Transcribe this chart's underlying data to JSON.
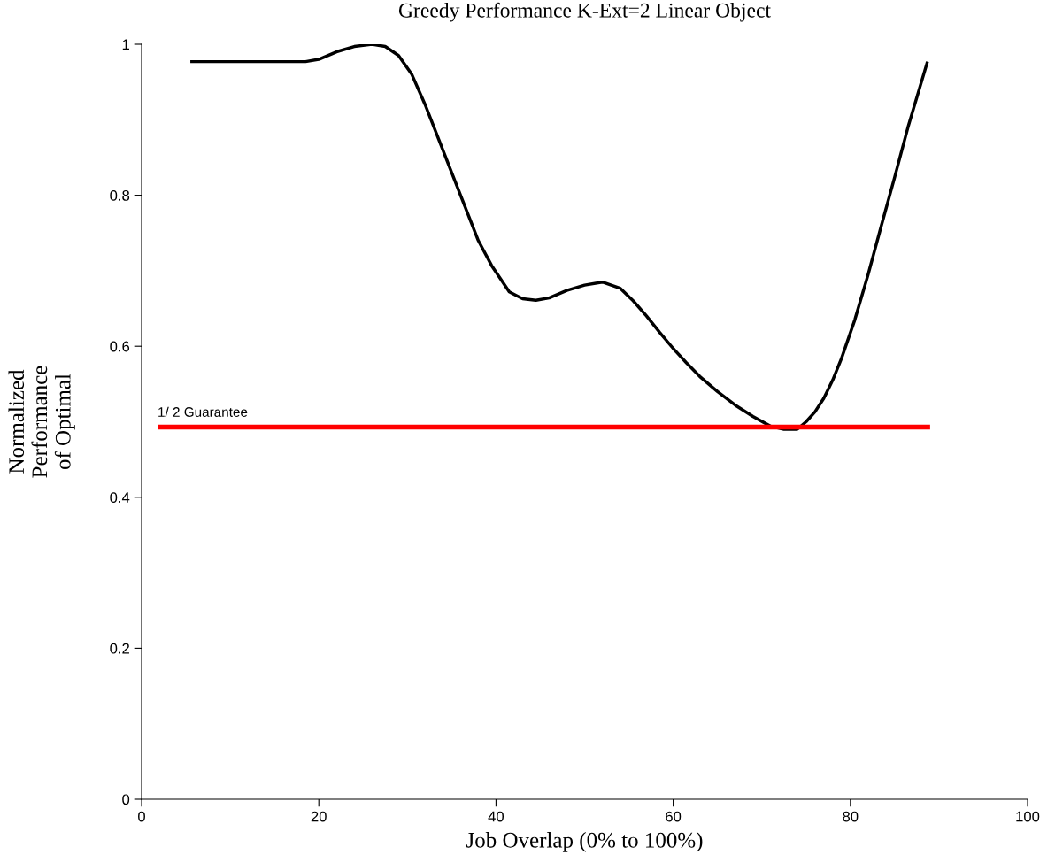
{
  "chart_data": {
    "type": "line",
    "title": "Greedy Performance K-Ext=2 Linear Object",
    "xlabel": "Job Overlap (0% to 100%)",
    "ylabel": "Normalized\nPerformance\nof Optimal",
    "xlim": [
      0,
      100
    ],
    "xticks": [
      0,
      20,
      40,
      60,
      80,
      100
    ],
    "ylim": [
      0,
      1
    ],
    "yticks": [
      0,
      0.2,
      0.4,
      0.6,
      0.8,
      1
    ],
    "grid": false,
    "series": [
      {
        "color": "#000000",
        "x": [
          5.5,
          10,
          15,
          18.5,
          20,
          22,
          24,
          26,
          27.5,
          29,
          30.5,
          32,
          34,
          36,
          38,
          39.5,
          41.5,
          43,
          44.5,
          46,
          48,
          50,
          52,
          54,
          55.5,
          57,
          58.5,
          60,
          61.5,
          63,
          65,
          67,
          69,
          71,
          72.5,
          74,
          75,
          76,
          77,
          78,
          79,
          80.5,
          82,
          83.5,
          85,
          86.5,
          88.7
        ],
        "values": [
          0.977,
          0.977,
          0.977,
          0.977,
          0.98,
          0.99,
          0.997,
          1.0,
          0.997,
          0.985,
          0.96,
          0.92,
          0.86,
          0.8,
          0.74,
          0.707,
          0.672,
          0.663,
          0.661,
          0.664,
          0.674,
          0.681,
          0.685,
          0.677,
          0.66,
          0.64,
          0.618,
          0.597,
          0.578,
          0.56,
          0.54,
          0.522,
          0.507,
          0.494,
          0.49,
          0.49,
          0.5,
          0.513,
          0.531,
          0.555,
          0.584,
          0.635,
          0.695,
          0.76,
          0.824,
          0.89,
          0.977
        ]
      },
      {
        "name": "1/ 2 Guarantee",
        "color": "#ff0000",
        "x": [
          1.8,
          89
        ],
        "values": [
          0.493,
          0.493
        ]
      }
    ]
  }
}
